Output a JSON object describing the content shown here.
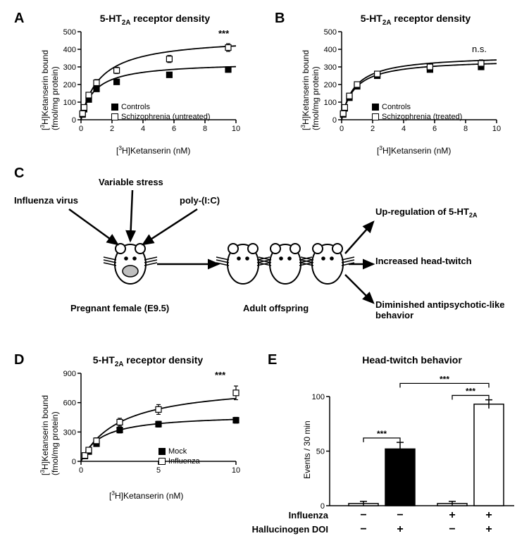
{
  "panelA": {
    "label": "A",
    "title_html": "5-HT<sub>2A</sub> receptor density",
    "ylabel_html": "[<sup>3</sup>H]Ketanserin bound<br>(fmol/mg protein)",
    "xlabel_html": "[<sup>3</sup>H]Ketanserin (nM)",
    "ylim": [
      0,
      500
    ],
    "ytick_step": 100,
    "xlim": [
      0,
      10
    ],
    "xtick_step": 2,
    "legend": [
      {
        "marker": "filled",
        "label": "Controls"
      },
      {
        "marker": "open",
        "label": "Schizophrenia (untreated)"
      }
    ],
    "series_controls": {
      "x": [
        0.1,
        0.2,
        0.5,
        1.0,
        2.3,
        5.7,
        9.5
      ],
      "y": [
        30,
        60,
        115,
        175,
        215,
        255,
        285
      ],
      "err": [
        8,
        10,
        12,
        12,
        12,
        12,
        15
      ],
      "marker": "filled"
    },
    "series_schizo": {
      "x": [
        0.1,
        0.2,
        0.5,
        1.0,
        2.3,
        5.7,
        9.5
      ],
      "y": [
        35,
        70,
        140,
        210,
        280,
        345,
        410
      ],
      "err": [
        10,
        12,
        15,
        18,
        18,
        20,
        22
      ],
      "marker": "open"
    },
    "annotation": "***",
    "line_color": "#000000",
    "marker_fill_closed": "#000000",
    "marker_fill_open": "#ffffff"
  },
  "panelB": {
    "label": "B",
    "title_html": "5-HT<sub>2A</sub> receptor density",
    "ylabel_html": "[<sup>3</sup>H]Ketanserin bound<br>(fmol/mg protein)",
    "xlabel_html": "[<sup>3</sup>H]Ketanserin (nM)",
    "ylim": [
      0,
      500
    ],
    "ytick_step": 100,
    "xlim": [
      0,
      10
    ],
    "xtick_step": 2,
    "legend": [
      {
        "marker": "filled",
        "label": "Controls"
      },
      {
        "marker": "open",
        "label": "Schizophrenia (treated)"
      }
    ],
    "series_controls": {
      "x": [
        0.1,
        0.2,
        0.5,
        1.0,
        2.3,
        5.7,
        9.0
      ],
      "y": [
        30,
        65,
        125,
        190,
        250,
        285,
        300
      ],
      "err": [
        8,
        10,
        12,
        12,
        12,
        12,
        15
      ],
      "marker": "filled"
    },
    "series_schizo": {
      "x": [
        0.1,
        0.2,
        0.5,
        1.0,
        2.3,
        5.7,
        9.0
      ],
      "y": [
        35,
        70,
        135,
        200,
        260,
        300,
        320
      ],
      "err": [
        10,
        12,
        15,
        15,
        15,
        18,
        20
      ],
      "marker": "open"
    },
    "annotation": "n.s.",
    "line_color": "#000000"
  },
  "panelC": {
    "label": "C",
    "inputs": [
      "Influenza virus",
      "Variable stress",
      "poly-(I:C)"
    ],
    "pregnant_label": "Pregnant female (E9.5)",
    "offspring_label": "Adult offspring",
    "outputs_html": [
      "Up-regulation of 5-HT<sub>2A</sub>",
      "Increased head-twitch",
      "Diminished antipsychotic-like<br>behavior"
    ]
  },
  "panelD": {
    "label": "D",
    "title_html": "5-HT<sub>2A</sub> receptor density",
    "ylabel_html": "[<sup>3</sup>H]Ketanserin bound<br>(fmol/mg protein)",
    "xlabel_html": "[<sup>3</sup>H]Ketanserin (nM)",
    "ylim": [
      0,
      900
    ],
    "ytick_step": 300,
    "xlim": [
      0,
      10
    ],
    "xtick_step": 5,
    "legend": [
      {
        "marker": "filled",
        "label": "Mock"
      },
      {
        "marker": "open",
        "label": "Influenza"
      }
    ],
    "series_mock": {
      "x": [
        0.25,
        0.5,
        1.0,
        2.5,
        5.0,
        10.0
      ],
      "y": [
        55,
        100,
        180,
        320,
        380,
        420
      ],
      "err": [
        15,
        20,
        25,
        30,
        30,
        30
      ],
      "marker": "filled"
    },
    "series_influenza": {
      "x": [
        0.25,
        0.5,
        1.0,
        2.5,
        5.0,
        10.0
      ],
      "y": [
        60,
        115,
        210,
        400,
        530,
        700
      ],
      "err": [
        20,
        25,
        30,
        40,
        50,
        70
      ],
      "marker": "open"
    },
    "annotation": "***"
  },
  "panelE": {
    "label": "E",
    "title": "Head-twitch behavior",
    "ylabel": "Events / 30 min",
    "ylim": [
      0,
      100
    ],
    "ytick_step": 50,
    "bars": [
      {
        "value": 2,
        "err": 2,
        "fill": "#ffffff"
      },
      {
        "value": 52,
        "err": 6,
        "fill": "#000000"
      },
      {
        "value": 2,
        "err": 2,
        "fill": "#ffffff"
      },
      {
        "value": 93,
        "err": 4,
        "fill": "#ffffff"
      }
    ],
    "row_labels": [
      "Influenza",
      "Hallucinogen DOI"
    ],
    "row_values": [
      [
        "−",
        "−",
        "+",
        "+"
      ],
      [
        "−",
        "+",
        "−",
        "+"
      ]
    ],
    "sig_bars": [
      {
        "from": 0,
        "to": 1,
        "h": 62,
        "label": "***"
      },
      {
        "from": 2,
        "to": 3,
        "h": 101,
        "label": "***"
      },
      {
        "from": 1,
        "to": 3,
        "h": 112,
        "label": "***"
      }
    ]
  },
  "colors": {
    "line": "#000000",
    "background": "#ffffff",
    "grid": "#000000"
  }
}
